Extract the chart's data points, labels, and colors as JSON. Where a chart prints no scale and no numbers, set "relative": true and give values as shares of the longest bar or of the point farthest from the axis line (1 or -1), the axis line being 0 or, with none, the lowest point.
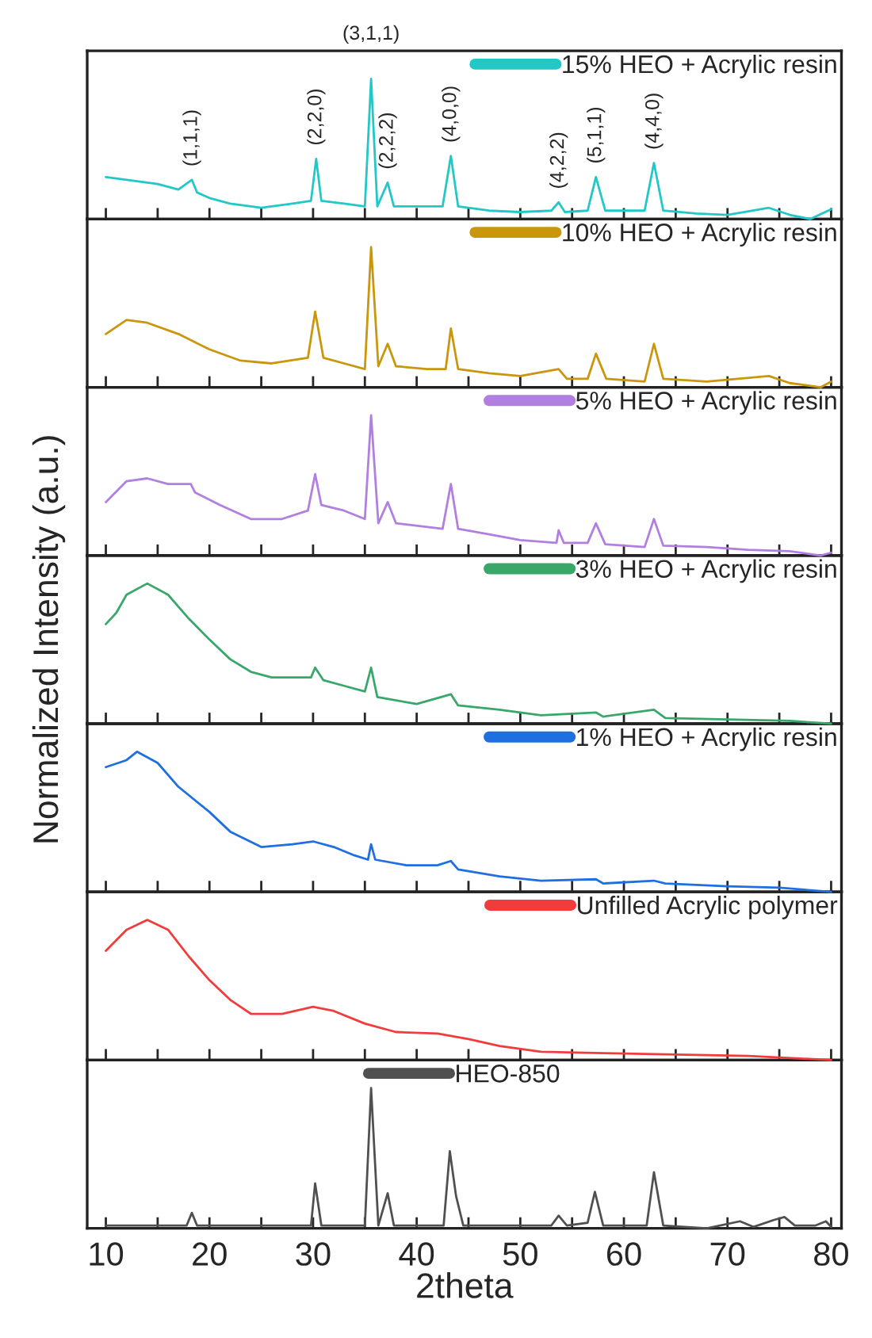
{
  "chart_data": [
    {
      "type": "line",
      "relative": true,
      "xlim": [
        8.2,
        81
      ],
      "xticks": [
        10,
        {
          "value": 15,
          "label": null
        },
        20,
        {
          "value": 25,
          "label": null
        },
        30,
        {
          "value": 35,
          "label": null
        },
        40,
        {
          "value": 45,
          "label": null
        },
        50,
        {
          "value": 55,
          "label": null
        },
        60,
        {
          "value": 65,
          "label": null
        },
        70,
        {
          "value": 75,
          "label": null
        },
        80
      ],
      "tick_labels": false,
      "legend": "top right",
      "x": [
        10,
        12,
        15,
        17,
        18.3,
        18.8,
        20,
        22,
        25,
        28,
        29.8,
        30.3,
        30.8,
        33,
        35,
        35.6,
        36.2,
        37.2,
        37.8,
        40,
        42.5,
        43.3,
        44,
        47,
        50,
        53,
        53.7,
        54.3,
        56.5,
        57.3,
        58.2,
        62,
        62.9,
        63.8,
        67,
        70,
        74,
        76,
        78,
        80
      ],
      "series": [
        {
          "name": "15% HEO + Acrylic resin",
          "color": "#22c7c7",
          "values": [
            0.3,
            0.28,
            0.25,
            0.21,
            0.28,
            0.19,
            0.15,
            0.11,
            0.08,
            0.11,
            0.13,
            0.43,
            0.13,
            0.11,
            0.09,
            1.0,
            0.09,
            0.26,
            0.09,
            0.09,
            0.09,
            0.45,
            0.09,
            0.06,
            0.05,
            0.06,
            0.12,
            0.05,
            0.06,
            0.3,
            0.06,
            0.06,
            0.4,
            0.06,
            0.04,
            0.03,
            0.08,
            0.03,
            0,
            0.07
          ]
        }
      ],
      "annotations": [
        {
          "text": "(1,1,1)",
          "x": 18.3,
          "y": 0.28
        },
        {
          "text": "(2,2,0)",
          "x": 30.3,
          "y": 0.43
        },
        {
          "text": "(3,1,1)",
          "x": 35.6,
          "y": 1.0
        },
        {
          "text": "(2,2,2)",
          "x": 37.2,
          "y": 0.26
        },
        {
          "text": "(4,0,0)",
          "x": 43.3,
          "y": 0.45
        },
        {
          "text": "(4,2,2)",
          "x": 53.7,
          "y": 0.12
        },
        {
          "text": "(5,1,1)",
          "x": 57.3,
          "y": 0.3
        },
        {
          "text": "(4,4,0)",
          "x": 62.9,
          "y": 0.4
        }
      ]
    },
    {
      "type": "line",
      "relative": true,
      "xlim": [
        8.2,
        81
      ],
      "xticks": [
        10,
        {
          "value": 15,
          "label": null
        },
        20,
        {
          "value": 25,
          "label": null
        },
        30,
        {
          "value": 35,
          "label": null
        },
        40,
        {
          "value": 45,
          "label": null
        },
        50,
        {
          "value": 55,
          "label": null
        },
        60,
        {
          "value": 65,
          "label": null
        },
        70,
        {
          "value": 75,
          "label": null
        },
        80
      ],
      "tick_labels": false,
      "legend": "top right",
      "x": [
        10,
        12,
        14,
        17,
        20,
        23,
        26,
        29.5,
        30.2,
        31,
        33,
        35,
        35.6,
        36.3,
        37.2,
        38,
        41,
        42.8,
        43.3,
        44,
        47,
        50,
        53.7,
        54.5,
        56.5,
        57.3,
        58.3,
        62,
        62.9,
        63.8,
        68,
        74,
        76,
        79,
        80
      ],
      "series": [
        {
          "name": "10% HEO + Acrylic resin",
          "color": "#c9960c",
          "values": [
            0.38,
            0.48,
            0.46,
            0.38,
            0.27,
            0.19,
            0.17,
            0.21,
            0.54,
            0.21,
            0.17,
            0.13,
            1.0,
            0.15,
            0.31,
            0.15,
            0.13,
            0.13,
            0.42,
            0.13,
            0.1,
            0.08,
            0.13,
            0.06,
            0.06,
            0.24,
            0.06,
            0.04,
            0.31,
            0.06,
            0.04,
            0.08,
            0.03,
            0,
            0.04
          ]
        }
      ]
    },
    {
      "type": "line",
      "relative": true,
      "xlim": [
        8.2,
        81
      ],
      "xticks": [
        10,
        {
          "value": 15,
          "label": null
        },
        20,
        {
          "value": 25,
          "label": null
        },
        30,
        {
          "value": 35,
          "label": null
        },
        40,
        {
          "value": 45,
          "label": null
        },
        50,
        {
          "value": 55,
          "label": null
        },
        60,
        {
          "value": 65,
          "label": null
        },
        70,
        {
          "value": 75,
          "label": null
        },
        80
      ],
      "tick_labels": false,
      "legend": "top right",
      "x": [
        10,
        12,
        14,
        16,
        18.2,
        18.6,
        21,
        24,
        27,
        29.5,
        30.2,
        30.8,
        33,
        35,
        35.6,
        36.3,
        37.2,
        38,
        42.5,
        43.3,
        44,
        47,
        50,
        53.5,
        53.7,
        54.2,
        56.5,
        57.3,
        58.2,
        62,
        62.9,
        63.8,
        68,
        72,
        76,
        79,
        80
      ],
      "series": [
        {
          "name": "5% HEO + Acrylic resin",
          "color": "#b07fe0",
          "values": [
            0.38,
            0.53,
            0.55,
            0.51,
            0.51,
            0.45,
            0.36,
            0.26,
            0.26,
            0.32,
            0.58,
            0.36,
            0.32,
            0.26,
            1.0,
            0.23,
            0.38,
            0.23,
            0.19,
            0.51,
            0.19,
            0.15,
            0.11,
            0.09,
            0.18,
            0.09,
            0.09,
            0.23,
            0.08,
            0.06,
            0.26,
            0.07,
            0.06,
            0.04,
            0.03,
            0,
            0.02
          ]
        }
      ]
    },
    {
      "type": "line",
      "relative": true,
      "xlim": [
        8.2,
        81
      ],
      "xticks": [
        10,
        {
          "value": 15,
          "label": null
        },
        20,
        {
          "value": 25,
          "label": null
        },
        30,
        {
          "value": 35,
          "label": null
        },
        40,
        {
          "value": 45,
          "label": null
        },
        50,
        {
          "value": 55,
          "label": null
        },
        60,
        {
          "value": 65,
          "label": null
        },
        70,
        {
          "value": 75,
          "label": null
        },
        80
      ],
      "tick_labels": false,
      "legend": "top right",
      "ylabel": "Normalized Intensity (a.u.)",
      "x": [
        10,
        11,
        12,
        14,
        16,
        18,
        20,
        22,
        24,
        26,
        28,
        29.8,
        30.2,
        31,
        33,
        35,
        35.6,
        36.2,
        40,
        43.3,
        44,
        48,
        52,
        57.3,
        58,
        62.9,
        64,
        70,
        76,
        80
      ],
      "series": [
        {
          "name": "3% HEO + Acrylic resin",
          "color": "#3aa76a",
          "values": [
            0.71,
            0.79,
            0.92,
            1.0,
            0.92,
            0.75,
            0.6,
            0.46,
            0.37,
            0.33,
            0.33,
            0.33,
            0.4,
            0.31,
            0.27,
            0.23,
            0.4,
            0.19,
            0.14,
            0.21,
            0.13,
            0.1,
            0.06,
            0.08,
            0.05,
            0.1,
            0.04,
            0.03,
            0.02,
            0
          ]
        }
      ]
    },
    {
      "type": "line",
      "relative": true,
      "xlim": [
        8.2,
        81
      ],
      "xticks": [
        10,
        {
          "value": 15,
          "label": null
        },
        20,
        {
          "value": 25,
          "label": null
        },
        30,
        {
          "value": 35,
          "label": null
        },
        40,
        {
          "value": 45,
          "label": null
        },
        50,
        {
          "value": 55,
          "label": null
        },
        60,
        {
          "value": 65,
          "label": null
        },
        70,
        {
          "value": 75,
          "label": null
        },
        80
      ],
      "tick_labels": false,
      "legend": "top right",
      "x": [
        10,
        12,
        13,
        15,
        17,
        20,
        22,
        25,
        28,
        30,
        32,
        34,
        35.3,
        35.6,
        36,
        39,
        42,
        43.3,
        44,
        48,
        52,
        57.3,
        58,
        62.9,
        64,
        70,
        75,
        80
      ],
      "series": [
        {
          "name": "1% HEO + Acrylic resin",
          "color": "#1f6fe0",
          "values": [
            0.89,
            0.94,
            1.0,
            0.92,
            0.75,
            0.57,
            0.43,
            0.32,
            0.34,
            0.36,
            0.32,
            0.26,
            0.23,
            0.34,
            0.23,
            0.19,
            0.19,
            0.22,
            0.16,
            0.11,
            0.08,
            0.09,
            0.06,
            0.08,
            0.06,
            0.04,
            0.03,
            0
          ]
        }
      ]
    },
    {
      "type": "line",
      "relative": true,
      "xlim": [
        8.2,
        81
      ],
      "xticks": [
        10,
        {
          "value": 15,
          "label": null
        },
        20,
        {
          "value": 25,
          "label": null
        },
        30,
        {
          "value": 35,
          "label": null
        },
        40,
        {
          "value": 45,
          "label": null
        },
        50,
        {
          "value": 55,
          "label": null
        },
        60,
        {
          "value": 65,
          "label": null
        },
        70,
        {
          "value": 75,
          "label": null
        },
        80
      ],
      "tick_labels": false,
      "legend": "top right",
      "x": [
        10,
        12,
        14,
        16,
        18,
        20,
        22,
        24,
        27,
        30,
        32,
        35,
        38,
        42,
        45,
        48,
        52,
        58,
        65,
        72,
        80
      ],
      "series": [
        {
          "name": "Unfilled Acrylic polymer",
          "color": "#f03c3c",
          "values": [
            0.78,
            0.93,
            1.0,
            0.93,
            0.74,
            0.57,
            0.43,
            0.33,
            0.33,
            0.38,
            0.35,
            0.26,
            0.2,
            0.19,
            0.15,
            0.1,
            0.06,
            0.05,
            0.04,
            0.03,
            0
          ]
        }
      ]
    },
    {
      "type": "line",
      "relative": true,
      "xlim": [
        8.2,
        81
      ],
      "xticks": [
        10,
        {
          "value": 15,
          "label": null
        },
        20,
        {
          "value": 25,
          "label": null
        },
        30,
        {
          "value": 35,
          "label": null
        },
        40,
        {
          "value": 45,
          "label": null
        },
        50,
        {
          "value": 55,
          "label": null
        },
        60,
        {
          "value": 65,
          "label": null
        },
        70,
        {
          "value": 75,
          "label": null
        },
        80
      ],
      "tick_labels": "x",
      "legend": "top",
      "xlabel": "2theta",
      "x": [
        10,
        17.8,
        18.3,
        18.8,
        29.8,
        30.2,
        30.8,
        35.0,
        35.6,
        36.3,
        37.2,
        37.8,
        42.6,
        43.2,
        43.8,
        44.5,
        53,
        53.7,
        54.5,
        56.5,
        57.2,
        58,
        62.2,
        62.9,
        63.8,
        68,
        71.2,
        72.5,
        74.5,
        75.5,
        76.5,
        78.5,
        79.5,
        80
      ],
      "series": [
        {
          "name": "HEO-850",
          "color": "#505050",
          "values": [
            0.02,
            0.02,
            0.11,
            0.02,
            0.02,
            0.32,
            0.02,
            0.02,
            1.0,
            0.02,
            0.25,
            0.02,
            0.02,
            0.55,
            0.23,
            0.02,
            0.02,
            0.09,
            0.02,
            0.04,
            0.26,
            0.02,
            0.02,
            0.4,
            0.02,
            0,
            0.05,
            0.01,
            0.06,
            0.08,
            0.02,
            0.02,
            0.05,
            0.01
          ]
        }
      ]
    }
  ]
}
